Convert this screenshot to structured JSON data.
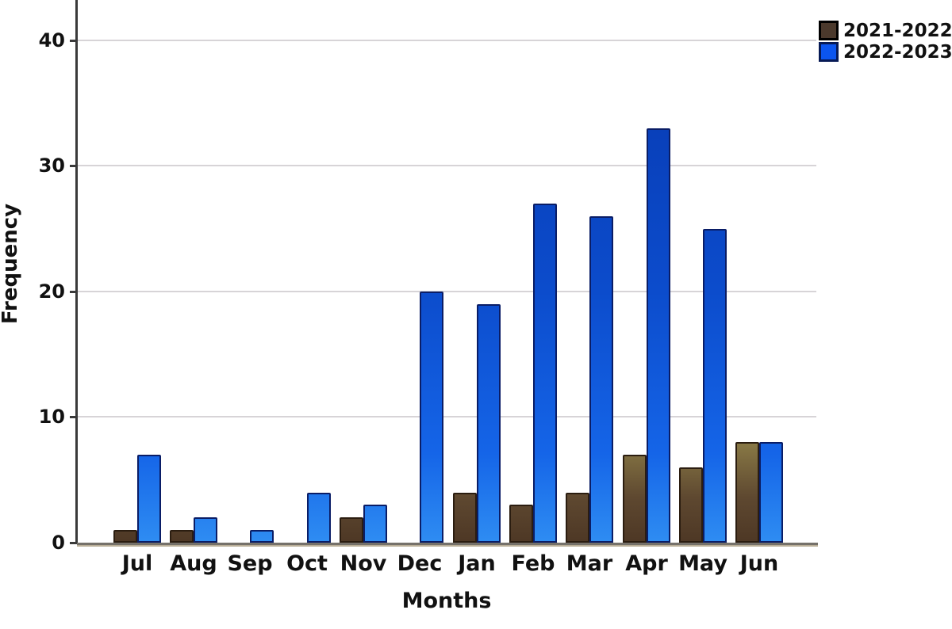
{
  "chart_data": {
    "type": "bar",
    "title": "",
    "xlabel": "Months",
    "ylabel": "Frequency",
    "categories": [
      "Jul",
      "Aug",
      "Sep",
      "Oct",
      "Nov",
      "Dec",
      "Jan",
      "Feb",
      "Mar",
      "Apr",
      "May",
      "Jun"
    ],
    "series": [
      {
        "name": "2021-2022",
        "values": [
          1,
          1,
          0,
          0,
          2,
          0,
          4,
          3,
          4,
          7,
          6,
          8
        ],
        "border_color": "#2B1D10",
        "legend_swatch_color": "#4B392C",
        "legend_swatch_border": "#000000",
        "gradient_stops": [
          "#4E3825 0%",
          "#5E4830 8%",
          "#887845 18%",
          "#A0925A 100%"
        ]
      },
      {
        "name": "2022-2023",
        "values": [
          7,
          2,
          1,
          4,
          3,
          20,
          19,
          27,
          26,
          33,
          25,
          8
        ],
        "border_color": "#0A1D66",
        "legend_swatch_color": "#0B55EF",
        "legend_swatch_border": "#071A55",
        "gradient_stops": [
          "#2E8CF2 0%",
          "#1565E8 16%",
          "#0C4CCC 46%",
          "#0636AC 100%"
        ]
      }
    ],
    "yticks": [
      0,
      10,
      20,
      30,
      40
    ],
    "ylim": [
      0,
      43.2
    ],
    "grid": "horizontal",
    "legend_position": "top-right",
    "colors": {
      "gridline": "#D7D4D7",
      "axis_line": "#3A3A3A",
      "baseline": "#75716A",
      "text": "#111111",
      "background": "#FFFFFF"
    }
  }
}
